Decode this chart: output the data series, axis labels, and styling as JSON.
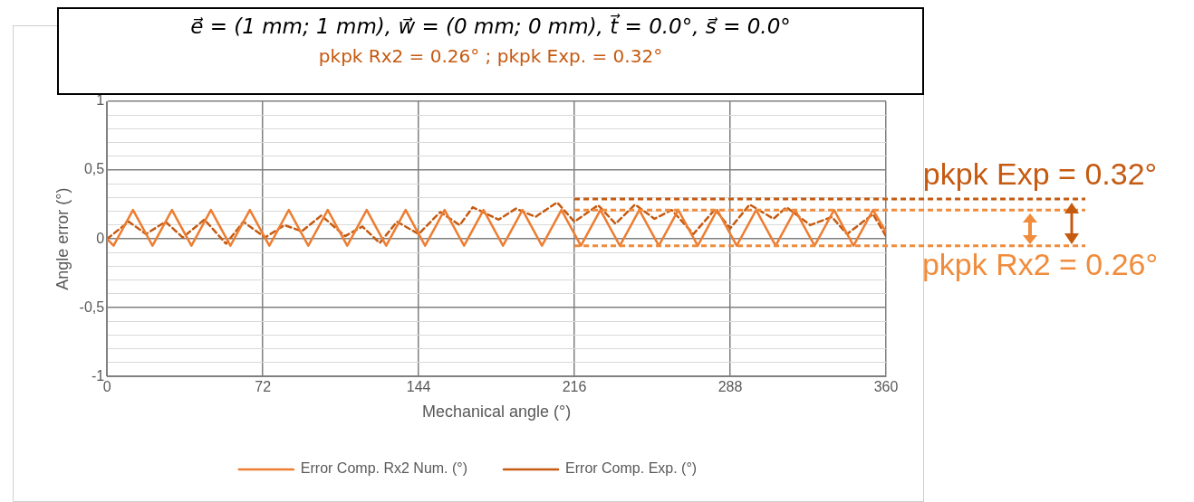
{
  "chart_data": {
    "type": "line",
    "title": "e⃗ = (1 mm; 1 mm), w⃗ = (0 mm; 0 mm), t⃗ = 0.0°, s⃗ = 0.0°",
    "subtitle": "pkpk Rx2 = 0.26° ; pkpk Exp. = 0.32°",
    "xlabel": "Mechanical angle (°)",
    "ylabel": "Angle error (°)",
    "xlim": [
      0,
      360
    ],
    "xticks": [
      0,
      72,
      144,
      216,
      288,
      360
    ],
    "ylim": [
      -1,
      1
    ],
    "yticks": [
      -1,
      {
        "value": -0.9,
        "label": null
      },
      {
        "value": -0.8,
        "label": null
      },
      {
        "value": -0.7,
        "label": null
      },
      {
        "value": -0.6,
        "label": null
      },
      {
        "value": -0.5,
        "label": "-0,5"
      },
      {
        "value": -0.4,
        "label": null
      },
      {
        "value": -0.3,
        "label": null
      },
      {
        "value": -0.2,
        "label": null
      },
      {
        "value": -0.1,
        "label": null
      },
      0,
      {
        "value": 0.1,
        "label": null
      },
      {
        "value": 0.2,
        "label": null
      },
      {
        "value": 0.3,
        "label": null
      },
      {
        "value": 0.4,
        "label": null
      },
      {
        "value": 0.5,
        "label": "0,5"
      },
      {
        "value": 0.6,
        "label": null
      },
      {
        "value": 0.7,
        "label": null
      },
      {
        "value": 0.8,
        "label": null
      },
      {
        "value": 0.9,
        "label": null
      },
      1
    ],
    "grid": true,
    "legend": "bottom",
    "marker": "none",
    "series": [
      {
        "name": "Error Comp. Rx2 Num. (°)",
        "color": "#ed7d31",
        "line_style": "solid",
        "x": [
          0,
          3,
          12,
          21,
          30,
          39,
          48,
          57,
          66,
          75,
          84,
          93,
          102,
          111,
          120,
          129,
          138,
          147,
          156,
          165,
          174,
          183,
          192,
          201,
          210,
          219,
          228,
          237,
          246,
          255,
          264,
          273,
          282,
          291,
          300,
          309,
          318,
          327,
          336,
          345,
          354,
          360
        ],
        "values": [
          0,
          -0.05,
          0.21,
          -0.05,
          0.21,
          -0.05,
          0.21,
          -0.05,
          0.21,
          -0.05,
          0.21,
          -0.05,
          0.21,
          -0.05,
          0.21,
          -0.05,
          0.21,
          -0.05,
          0.21,
          -0.05,
          0.21,
          -0.05,
          0.21,
          -0.05,
          0.21,
          -0.05,
          0.21,
          -0.05,
          0.21,
          -0.05,
          0.21,
          -0.05,
          0.21,
          -0.05,
          0.21,
          -0.05,
          0.21,
          -0.05,
          0.21,
          -0.05,
          0.21,
          0.05
        ]
      },
      {
        "name": "Error Comp. Exp. (°)",
        "color": "#c55a11",
        "line_style": "dashed",
        "x": [
          0,
          10,
          18,
          27,
          35,
          45,
          55,
          63,
          73,
          82,
          90,
          99,
          110,
          118,
          126,
          134,
          144,
          154,
          163,
          169,
          181,
          189,
          198,
          208,
          216,
          227,
          235,
          244,
          253,
          261,
          271,
          281,
          288,
          297,
          308,
          314,
          325,
          335,
          342,
          354,
          360
        ],
        "values": [
          0,
          0.125,
          0.035,
          0.125,
          0.01,
          0.14,
          -0.035,
          0.125,
          0.01,
          0.1,
          0.055,
          0.17,
          0.02,
          0.09,
          -0.03,
          0.125,
          0.035,
          0.195,
          0.1,
          0.23,
          0.14,
          0.22,
          0.16,
          0.265,
          0.125,
          0.245,
          0.11,
          0.25,
          0.146,
          0.21,
          0.035,
          0.215,
          0.076,
          0.25,
          0.146,
          0.23,
          0.1,
          0.16,
          0.035,
          0.18,
          0.02
        ]
      }
    ],
    "ref_lines": [
      {
        "axis": "y",
        "value": 0.29,
        "color": "#c55a11",
        "line_style": "dashed"
      },
      {
        "axis": "y",
        "value": 0.21,
        "color": "#f08c3c",
        "line_style": "dashed"
      },
      {
        "axis": "y",
        "value": -0.05,
        "color": "#f08c3c",
        "line_style": "dashed"
      }
    ],
    "annotations": [
      "pkpk Exp = 0.32°",
      "pkpk Rx2 = 0.26°"
    ]
  }
}
